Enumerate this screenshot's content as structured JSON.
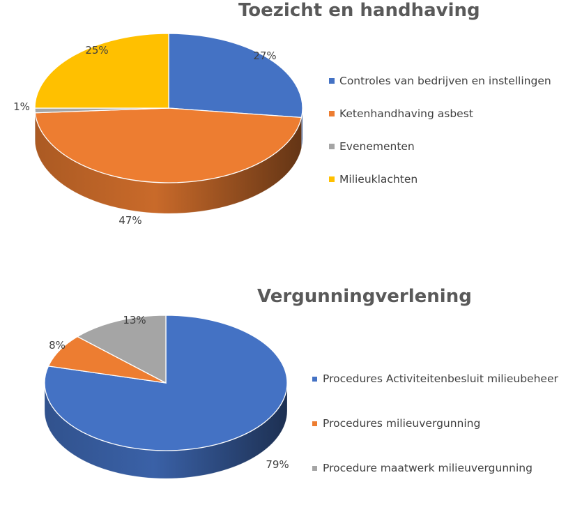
{
  "chart_data": [
    {
      "type": "pie",
      "title": "Toezicht en handhaving",
      "categories": [
        "Controles van bedrijven en instellingen",
        "Ketenhandhaving asbest",
        "Evenementen",
        "Milieuklachten"
      ],
      "values": [
        27,
        47,
        1,
        25
      ],
      "labels": [
        "27%",
        "47%",
        "1%",
        "25%"
      ],
      "colors": [
        "#4472C4",
        "#ED7D31",
        "#A5A5A5",
        "#FFC000"
      ],
      "style": "3d",
      "legend": "right"
    },
    {
      "type": "pie",
      "title": "Vergunningverlening",
      "categories": [
        "Procedures Activiteitenbesluit milieubeheer",
        "Procedures milieuvergunning",
        "Procedure maatwerk milieuvergunning"
      ],
      "values": [
        79,
        8,
        13
      ],
      "labels": [
        "79%",
        "8%",
        "13%"
      ],
      "colors": [
        "#4472C4",
        "#ED7D31",
        "#A5A5A5"
      ],
      "style": "3d",
      "legend": "right"
    }
  ]
}
